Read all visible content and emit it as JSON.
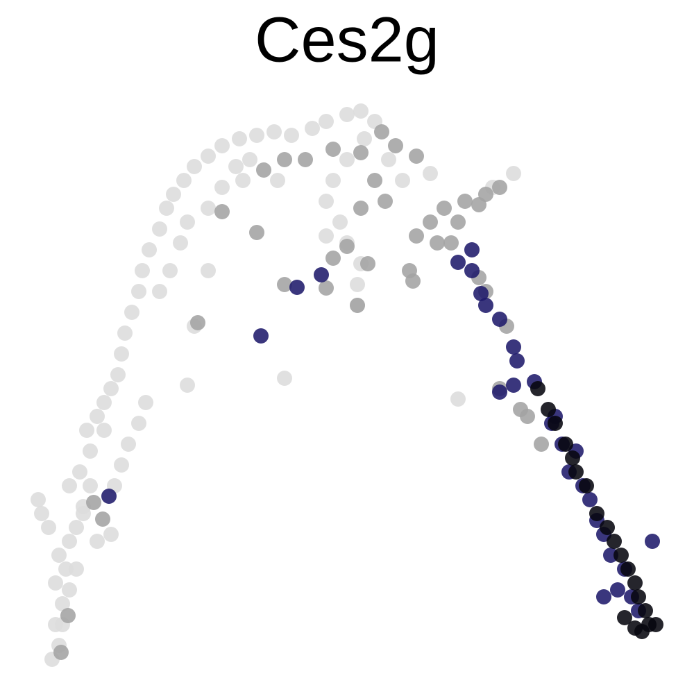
{
  "chart_data": {
    "type": "scatter",
    "title": "Ces2g",
    "xlim": [
      0,
      100
    ],
    "ylim": [
      0,
      100
    ],
    "series": [
      {
        "color": "#dcdcdc",
        "x": [
          7.5,
          8.5,
          8,
          9,
          8,
          9.5,
          8.5,
          10,
          7,
          5.5,
          11,
          12,
          10,
          11.5,
          13,
          12.5,
          14,
          16,
          15,
          17,
          17.5,
          18,
          19,
          20,
          20.5,
          21.5,
          23,
          24,
          25,
          26.5,
          28,
          30,
          32,
          34.5,
          37,
          39.5,
          42,
          45,
          47,
          50,
          52,
          54,
          52.5,
          50,
          48,
          47,
          49,
          47,
          50,
          52,
          51.5,
          51.5,
          21,
          20,
          18.5,
          17.5,
          16.5,
          23,
          24.5,
          26,
          27,
          30,
          32,
          34,
          36,
          28,
          41,
          27,
          66,
          30,
          35,
          40,
          56,
          58,
          62,
          74,
          71,
          15,
          12,
          14,
          10,
          9,
          11,
          13,
          6,
          16
        ],
        "values": [
          5,
          7,
          10,
          13,
          16,
          18,
          20,
          22,
          24,
          28,
          24,
          27,
          30,
          32,
          35,
          38,
          40,
          44,
          42,
          46,
          49,
          52,
          55,
          58,
          61,
          64,
          67,
          70,
          72,
          74,
          76,
          77.5,
          79,
          80,
          80.5,
          81,
          80.5,
          81.5,
          82.5,
          83.5,
          84,
          82.5,
          80,
          77,
          74,
          71,
          68,
          66,
          65,
          62,
          59,
          56,
          42,
          39,
          36,
          33,
          30,
          58,
          61,
          65,
          68,
          70,
          73,
          76,
          77,
          53,
          45.5,
          44.5,
          42.5,
          61,
          74,
          74,
          77,
          74,
          75,
          75,
          73,
          38,
          26,
          22,
          15,
          10,
          18,
          30,
          26,
          23
        ]
      },
      {
        "color": "#a3a3a3",
        "x": [
          62,
          64,
          66,
          60,
          63,
          67,
          70,
          72,
          55,
          57,
          60,
          48,
          52,
          54,
          52,
          55.5,
          59,
          59.5,
          53,
          50,
          47,
          51.5,
          44,
          41,
          38,
          37,
          28.5,
          41,
          69,
          72,
          76,
          78,
          75,
          65,
          70,
          69,
          73,
          14.8,
          9.8,
          8.8,
          13.5,
          32,
          48
        ],
        "values": [
          68,
          70,
          68,
          66,
          65,
          71,
          72,
          73,
          81,
          79,
          77.5,
          78.5,
          78,
          74,
          70,
          71,
          61,
          59.5,
          62,
          64.5,
          58.5,
          56,
          77,
          77,
          75.5,
          66.5,
          53.5,
          59,
          70.5,
          44,
          40,
          36,
          41,
          65,
          58,
          60,
          53,
          25.2,
          11.3,
          6,
          27.6,
          69.5,
          62.8
        ]
      },
      {
        "color": "#1f1a6b",
        "x": [
          66,
          68,
          69.3,
          68,
          72,
          74.5,
          74,
          72,
          74,
          77,
          80,
          81,
          82,
          84,
          85,
          86,
          87,
          88,
          90,
          94,
          87,
          89,
          91,
          92,
          42.8,
          46.3,
          37.6,
          15.7,
          70,
          79.5,
          83
        ],
        "values": [
          62.2,
          64,
          57.7,
          61,
          54,
          48,
          50,
          43.5,
          44.5,
          45,
          40,
          36,
          32,
          30,
          28,
          25,
          23,
          20,
          18,
          22,
          14,
          15,
          14,
          12,
          58.6,
          60.4,
          51.6,
          28.5,
          56,
          39,
          35
        ]
      },
      {
        "color": "#07070f",
        "x": [
          77.5,
          79,
          80,
          81.5,
          82.5,
          83,
          84.5,
          86,
          87.5,
          88.5,
          89.5,
          90.5,
          91.5,
          92,
          93,
          93.5,
          92.5,
          94.5,
          91.5,
          90
        ],
        "values": [
          44,
          41,
          39,
          36,
          34,
          32,
          30,
          26,
          24,
          22,
          20,
          18,
          16,
          14,
          12,
          10,
          9,
          10,
          9.5,
          11
        ]
      }
    ]
  }
}
